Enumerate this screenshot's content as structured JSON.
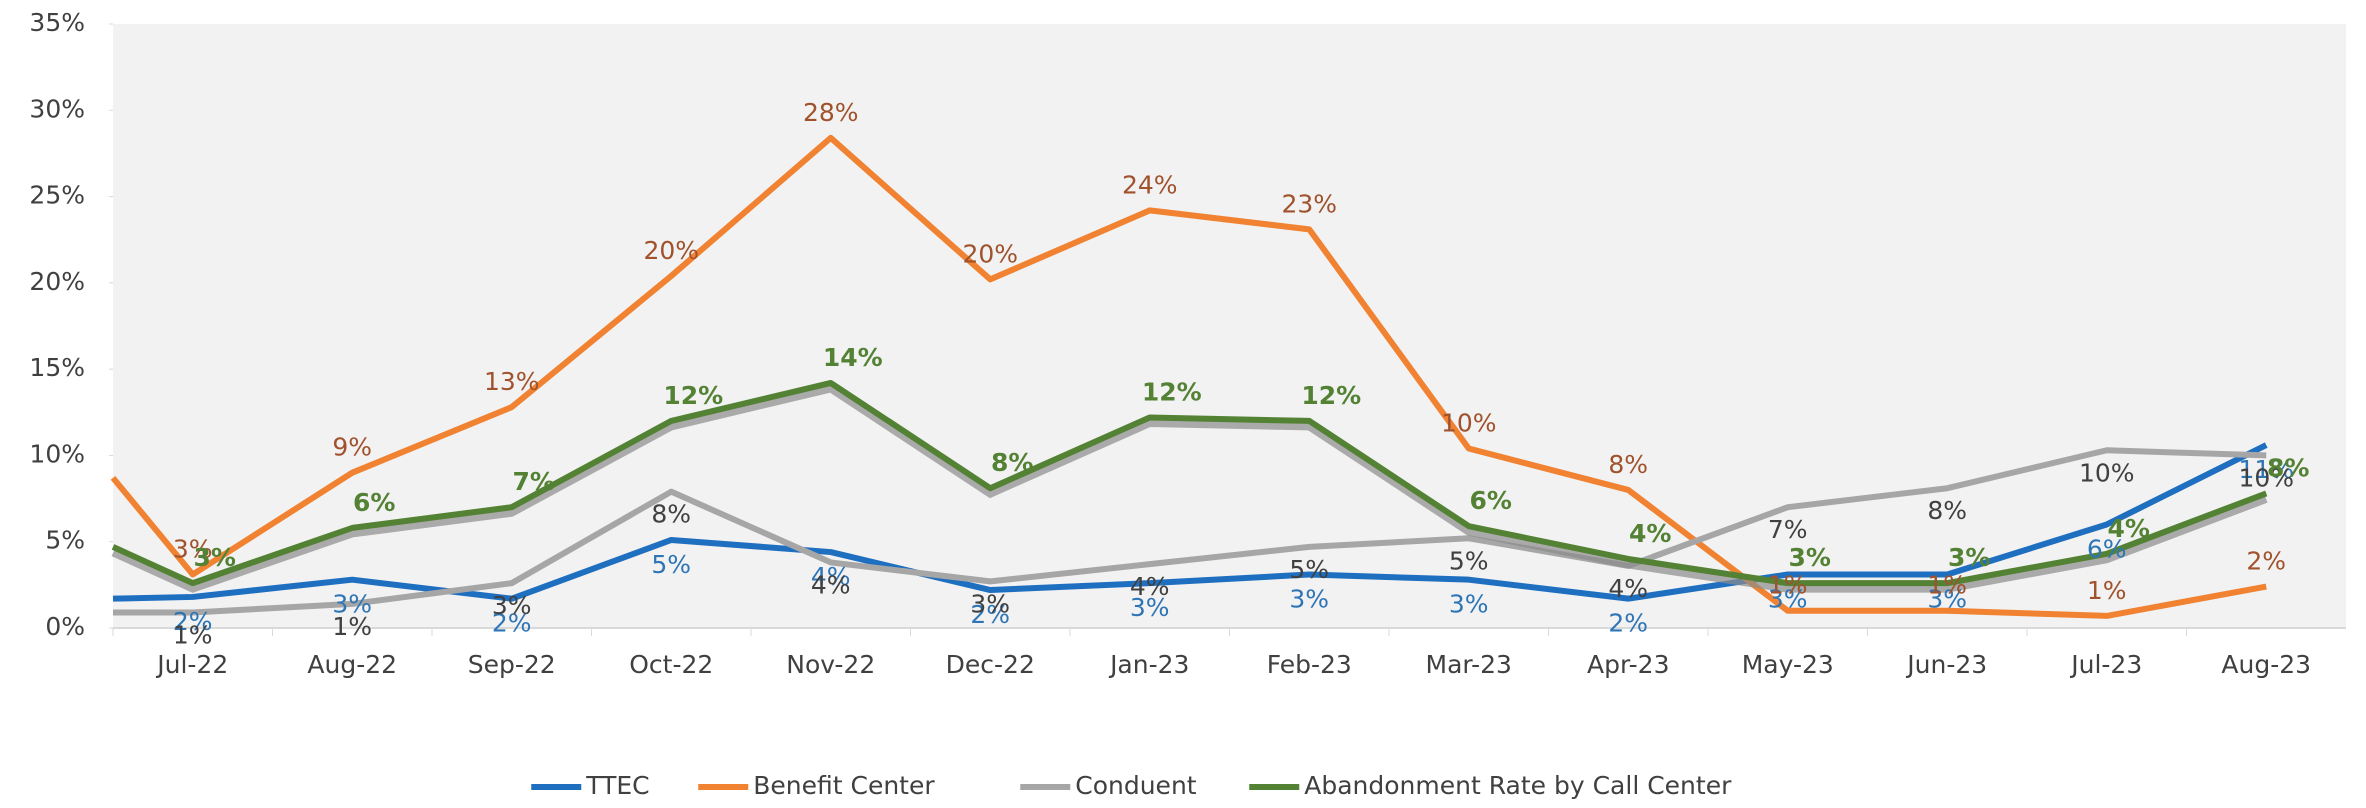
{
  "chart_data": {
    "type": "line",
    "categories": [
      null,
      "Jul-22",
      "Aug-22",
      "Sep-22",
      "Oct-22",
      "Nov-22",
      "Dec-22",
      "Jan-23",
      "Feb-23",
      "Mar-23",
      "Apr-23",
      "May-23",
      "Jun-23",
      "Jul-23",
      "Aug-23"
    ],
    "ylim": [
      0,
      35
    ],
    "yticks": [
      {
        "value": 0,
        "label": "0%"
      },
      {
        "value": 5,
        "label": "5%"
      },
      {
        "value": 10,
        "label": "10%"
      },
      {
        "value": 15,
        "label": "15%"
      },
      {
        "value": 20,
        "label": "20%"
      },
      {
        "value": 25,
        "label": "25%"
      },
      {
        "value": 30,
        "label": "30%"
      },
      {
        "value": 35,
        "label": "35%"
      }
    ],
    "legend": "bottom",
    "series": [
      {
        "name": "TTEC",
        "color": "#1f6fc0",
        "label_color": "#2e75b6",
        "values": [
          1.7,
          1.8,
          2.8,
          1.7,
          5.1,
          4.4,
          2.2,
          2.6,
          3.1,
          2.8,
          1.7,
          3.1,
          3.1,
          6.0,
          10.6
        ],
        "value_labels": [
          null,
          "2%",
          "3%",
          "2%",
          "5%",
          "4%",
          "2%",
          "3%",
          "3%",
          "3%",
          "2%",
          "3%",
          "3%",
          "6%",
          "11%"
        ]
      },
      {
        "name": "Benefit Center",
        "color": "#f08232",
        "label_color": "#a0522d",
        "values": [
          8.7,
          3.1,
          9.0,
          12.8,
          20.4,
          28.4,
          20.2,
          24.2,
          23.1,
          10.4,
          8.0,
          1.0,
          1.0,
          0.7,
          2.4
        ],
        "value_labels": [
          null,
          "3%",
          "9%",
          "13%",
          "20%",
          "28%",
          "20%",
          "24%",
          "23%",
          "10%",
          "8%",
          "1%",
          "1%",
          "1%",
          "2%"
        ]
      },
      {
        "name": "Conduent",
        "color": "#a6a6a6",
        "label_color": "#404040",
        "values": [
          0.9,
          0.9,
          1.4,
          2.6,
          7.9,
          3.8,
          2.7,
          3.7,
          4.7,
          5.2,
          3.6,
          7.0,
          8.1,
          10.3,
          10.0
        ],
        "value_labels": [
          null,
          "1%",
          "1%",
          "3%",
          "8%",
          "4%",
          "3%",
          "4%",
          "5%",
          "5%",
          "4%",
          "7%",
          "8%",
          "10%",
          "10%"
        ]
      },
      {
        "name": "Abandonment Rate by Call Center",
        "color": "#548235",
        "label_color": "#548235",
        "shadow": true,
        "values": [
          4.7,
          2.6,
          5.8,
          7.0,
          12.0,
          14.2,
          8.1,
          12.2,
          12.0,
          5.9,
          4.0,
          2.6,
          2.6,
          4.3,
          7.8
        ],
        "value_labels": [
          null,
          "3%",
          "6%",
          "7%",
          "12%",
          "14%",
          "8%",
          "12%",
          "12%",
          "6%",
          "4%",
          "3%",
          "3%",
          "4%",
          "8%"
        ]
      }
    ]
  }
}
